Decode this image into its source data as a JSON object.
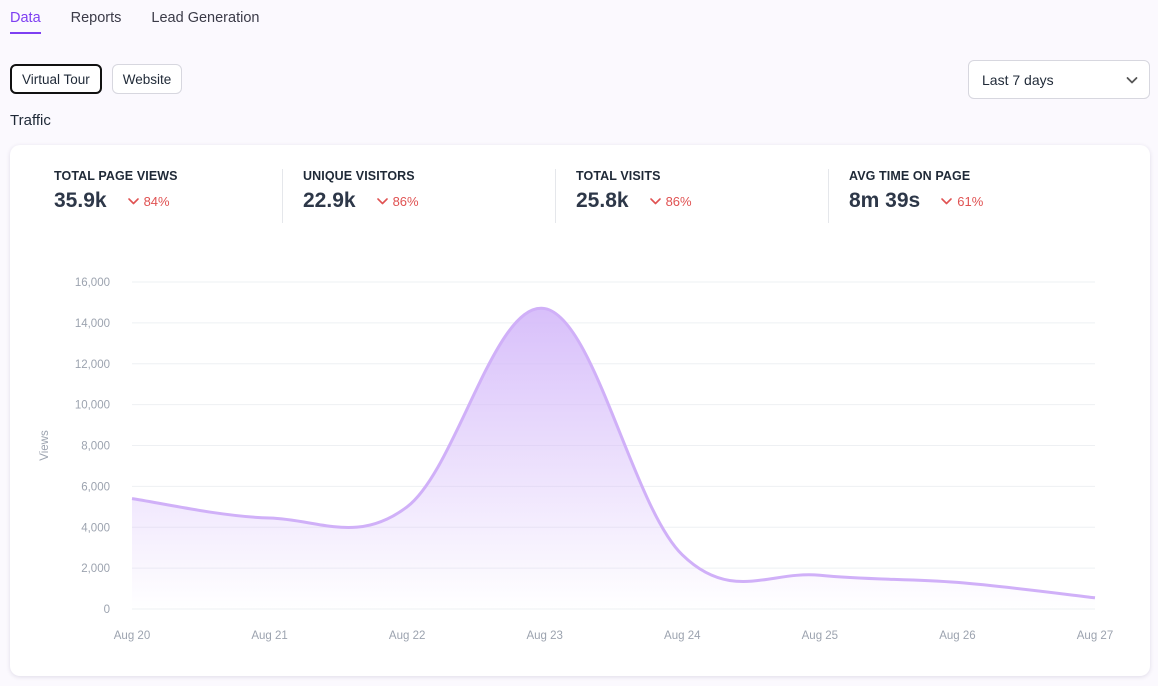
{
  "tabs": [
    {
      "label": "Data",
      "active": true
    },
    {
      "label": "Reports",
      "active": false
    },
    {
      "label": "Lead Generation",
      "active": false
    }
  ],
  "segments": [
    {
      "label": "Virtual Tour",
      "selected": true
    },
    {
      "label": "Website",
      "selected": false
    }
  ],
  "range_select": {
    "value": "Last 7 days"
  },
  "section_title": "Traffic",
  "stats": [
    {
      "label": "TOTAL PAGE VIEWS",
      "value": "35.9k",
      "delta": "84%"
    },
    {
      "label": "UNIQUE VISITORS",
      "value": "22.9k",
      "delta": "86%"
    },
    {
      "label": "TOTAL VISITS",
      "value": "25.8k",
      "delta": "86%"
    },
    {
      "label": "AVG TIME ON PAGE",
      "value": "8m 39s",
      "delta": "61%"
    }
  ],
  "colors": {
    "accent": "#7e3ff2",
    "line": "#d0b0f8",
    "fill": "#dcc5fb",
    "negative": "#e05252"
  },
  "chart_data": {
    "type": "area",
    "title": "",
    "xlabel": "",
    "ylabel": "Views",
    "categories": [
      "Aug 20",
      "Aug 21",
      "Aug 22",
      "Aug 23",
      "Aug 24",
      "Aug 25",
      "Aug 26",
      "Aug 27"
    ],
    "series": [
      {
        "name": "Views",
        "values": [
          5400,
          4450,
          5000,
          14700,
          2650,
          1650,
          1300,
          550
        ]
      }
    ],
    "ylim": [
      0,
      16000
    ],
    "yticks": [
      0,
      2000,
      4000,
      6000,
      8000,
      10000,
      12000,
      14000,
      16000
    ],
    "ytick_labels": [
      "0",
      "2,000",
      "4,000",
      "6,000",
      "8,000",
      "10,000",
      "12,000",
      "14,000",
      "16,000"
    ],
    "grid": true
  }
}
